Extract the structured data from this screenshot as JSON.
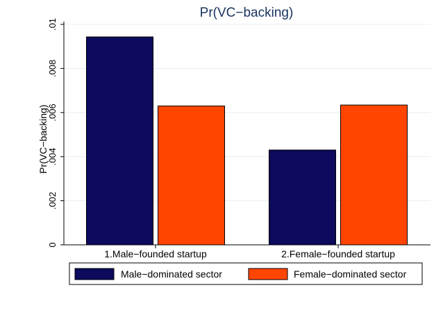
{
  "chart_data": {
    "type": "bar",
    "title": "Pr(VC−backing)",
    "ylabel": "Pr(VC−backing)",
    "xlabel": "",
    "ylim": [
      0,
      0.01
    ],
    "yticks": [
      {
        "value": 0,
        "label": "0"
      },
      {
        "value": 0.002,
        "label": ".002"
      },
      {
        "value": 0.004,
        "label": ".004"
      },
      {
        "value": 0.006,
        "label": ".006"
      },
      {
        "value": 0.008,
        "label": ".008"
      },
      {
        "value": 0.01,
        "label": ".01"
      }
    ],
    "grid": true,
    "categories": [
      "1.Male−founded startup",
      "2.Female−founded startup"
    ],
    "series": [
      {
        "name": "Male−dominated sector",
        "values": [
          0.00943,
          0.0043
        ],
        "color": "#0b0a5c"
      },
      {
        "name": "Female−dominated sector",
        "values": [
          0.0063,
          0.00634
        ],
        "color": "#ff4500"
      }
    ],
    "legend_position": "bottom"
  }
}
